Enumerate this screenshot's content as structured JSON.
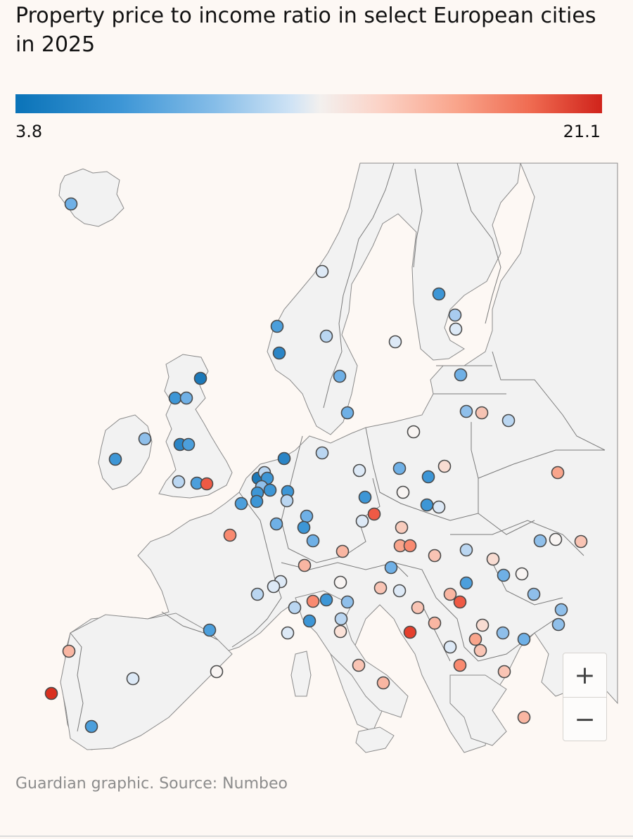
{
  "title": "Property price to income ratio in select European cities in 2025",
  "legend": {
    "min_label": "3.8",
    "max_label": "21.1",
    "min": 3.8,
    "max": 21.1
  },
  "source": "Guardian graphic. Source: Numbeo",
  "zoom": {
    "in_label": "+",
    "out_label": "−"
  },
  "colors": {
    "low": "#0a73b8",
    "mid": "#f3f0ee",
    "high": "#d0231b",
    "land": "#f2f2f2",
    "border": "#7a7a7a",
    "sea": "#fdf8f4"
  }
}
